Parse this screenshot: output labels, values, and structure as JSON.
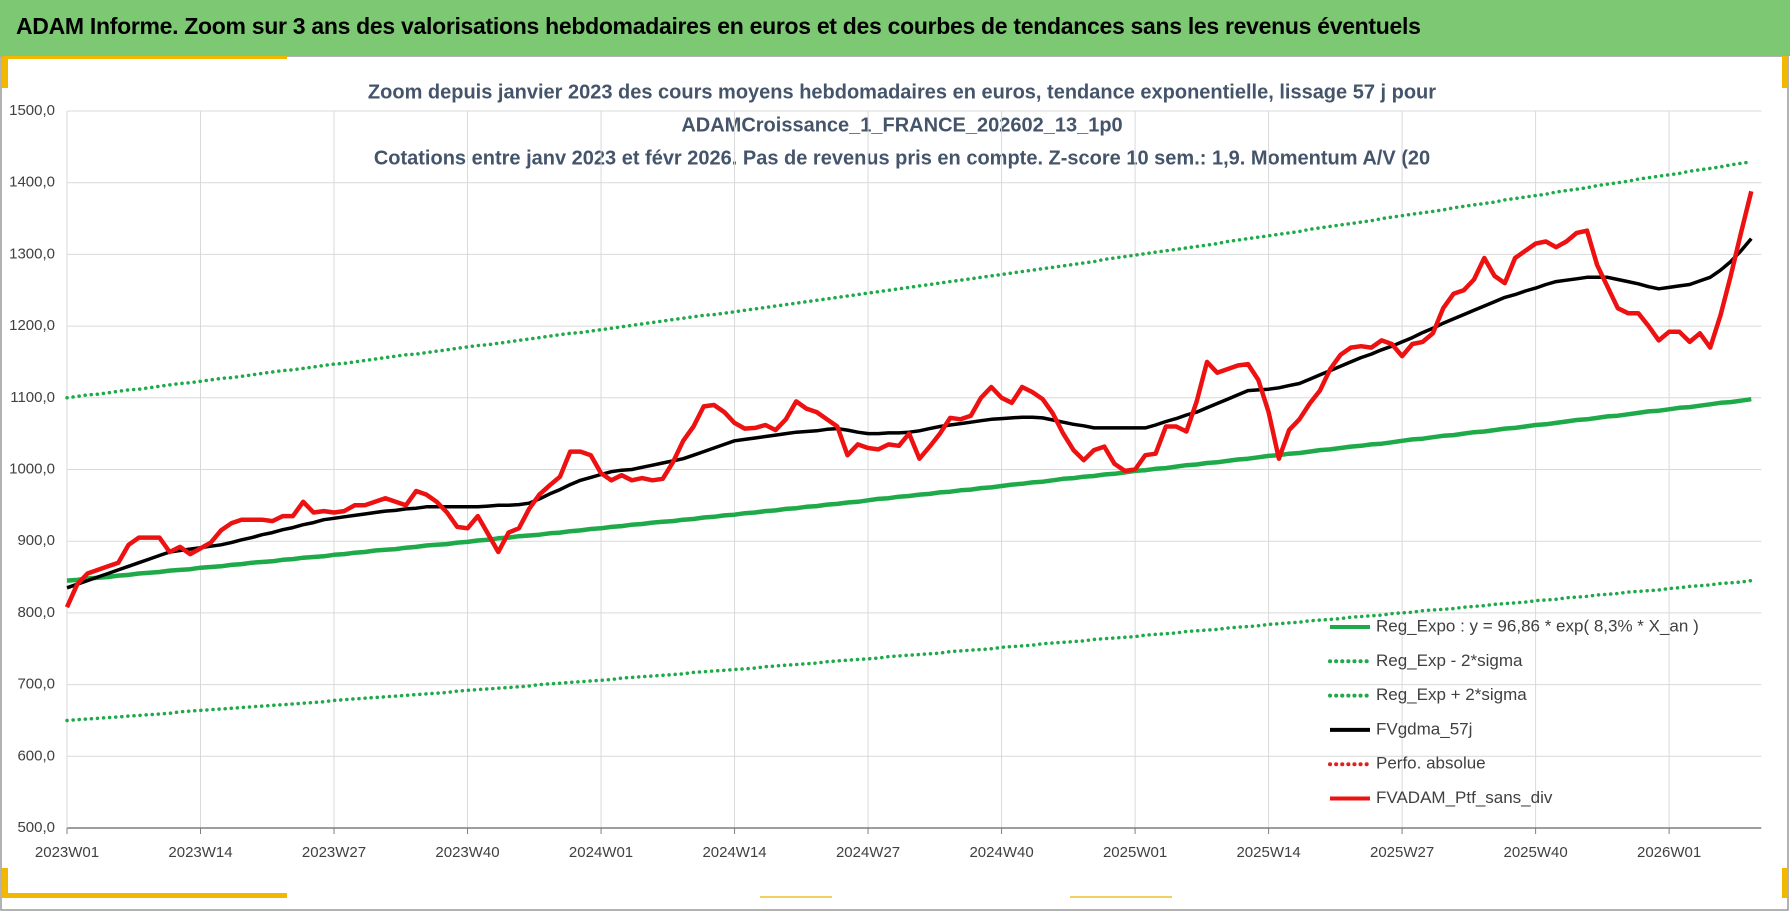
{
  "header": {
    "title": "ADAM Informe. Zoom sur 3 ans des valorisations hebdomadaires en euros et des courbes de tendances sans les revenus éventuels"
  },
  "chart_data": {
    "type": "line",
    "title": [
      "Zoom depuis janvier 2023 des cours moyens hebdomadaires  en euros, tendance exponentielle, lissage 57 j pour",
      "ADAMCroissance_1_FRANCE_202602_13_1p0",
      "Cotations  entre janv 2023 et févr 2026. Pas de revenus pris en compte. Z-score 10 sem.: 1,9. Momentum A/V (20"
    ],
    "categories": [
      "2023W01",
      null,
      null,
      null,
      null,
      null,
      null,
      null,
      null,
      null,
      null,
      null,
      null,
      "2023W14",
      null,
      null,
      null,
      null,
      null,
      null,
      null,
      null,
      null,
      null,
      null,
      null,
      "2023W27",
      null,
      null,
      null,
      null,
      null,
      null,
      null,
      null,
      null,
      null,
      null,
      null,
      "2023W40",
      null,
      null,
      null,
      null,
      null,
      null,
      null,
      null,
      null,
      null,
      null,
      null,
      "2024W01",
      null,
      null,
      null,
      null,
      null,
      null,
      null,
      null,
      null,
      null,
      null,
      null,
      "2024W14",
      null,
      null,
      null,
      null,
      null,
      null,
      null,
      null,
      null,
      null,
      null,
      null,
      "2024W27",
      null,
      null,
      null,
      null,
      null,
      null,
      null,
      null,
      null,
      null,
      null,
      null,
      "2024W40",
      null,
      null,
      null,
      null,
      null,
      null,
      null,
      null,
      null,
      null,
      null,
      null,
      "2025W01",
      null,
      null,
      null,
      null,
      null,
      null,
      null,
      null,
      null,
      null,
      null,
      null,
      "2025W14",
      null,
      null,
      null,
      null,
      null,
      null,
      null,
      null,
      null,
      null,
      null,
      null,
      "2025W27",
      null,
      null,
      null,
      null,
      null,
      null,
      null,
      null,
      null,
      null,
      null,
      null,
      "2025W40",
      null,
      null,
      null,
      null,
      null,
      null,
      null,
      null,
      null,
      null,
      null,
      null,
      "2026W01",
      null,
      null,
      null,
      null,
      null,
      null,
      null,
      null
    ],
    "ylim": [
      500,
      1500
    ],
    "yticks": [
      {
        "value": 500,
        "label": "500,0"
      },
      {
        "value": 600,
        "label": "600,0"
      },
      {
        "value": 700,
        "label": "700,0"
      },
      {
        "value": 800,
        "label": "800,0"
      },
      {
        "value": 900,
        "label": "900,0"
      },
      {
        "value": 1000,
        "label": "1000,0"
      },
      {
        "value": 1100,
        "label": "1100,0"
      },
      {
        "value": 1200,
        "label": "1200,0"
      },
      {
        "value": 1300,
        "label": "1300,0"
      },
      {
        "value": 1400,
        "label": "1400,0"
      },
      {
        "value": 1500,
        "label": "1500,0"
      }
    ],
    "grid": true,
    "legend": "lower right",
    "series": [
      {
        "name": "Reg_Expo : y = 96,86 * exp( 8,3% *  X_an )",
        "color": "#1faa4a",
        "style": "solid",
        "values": [
          845,
          846,
          848,
          849,
          850,
          852,
          853,
          855,
          856,
          857,
          859,
          860,
          861,
          863,
          864,
          865,
          867,
          868,
          870,
          871,
          872,
          874,
          875,
          877,
          878,
          879,
          881,
          882,
          884,
          885,
          887,
          888,
          889,
          891,
          892,
          894,
          895,
          896,
          898,
          899,
          901,
          902,
          904,
          905,
          907,
          908,
          909,
          911,
          912,
          914,
          915,
          917,
          918,
          920,
          921,
          923,
          924,
          926,
          927,
          928,
          930,
          931,
          933,
          934,
          936,
          937,
          939,
          940,
          942,
          943,
          945,
          946,
          948,
          949,
          951,
          952,
          954,
          955,
          957,
          959,
          960,
          962,
          963,
          965,
          966,
          968,
          969,
          971,
          972,
          974,
          975,
          977,
          979,
          980,
          982,
          983,
          985,
          987,
          988,
          990,
          991,
          993,
          994,
          996,
          998,
          999,
          1001,
          1002,
          1004,
          1006,
          1007,
          1009,
          1010,
          1012,
          1014,
          1015,
          1017,
          1019,
          1020,
          1022,
          1023,
          1025,
          1027,
          1028,
          1030,
          1032,
          1033,
          1035,
          1036,
          1038,
          1040,
          1042,
          1043,
          1045,
          1047,
          1048,
          1050,
          1052,
          1053,
          1055,
          1057,
          1058,
          1060,
          1062,
          1063,
          1065,
          1067,
          1069,
          1070,
          1072,
          1074,
          1075,
          1077,
          1079,
          1081,
          1082,
          1084,
          1086,
          1087,
          1089,
          1091,
          1093,
          1094,
          1096,
          1098
        ]
      },
      {
        "name": "Reg_Exp - 2*sigma",
        "color": "#1faa4a",
        "style": "dotted",
        "values": [
          650,
          651,
          652,
          653,
          654,
          655,
          656,
          657,
          658,
          659,
          660,
          662,
          663,
          664,
          665,
          666,
          667,
          668,
          669,
          670,
          671,
          672,
          673,
          674,
          675,
          676,
          678,
          679,
          680,
          681,
          682,
          683,
          684,
          685,
          686,
          687,
          688,
          689,
          691,
          692,
          693,
          694,
          695,
          696,
          697,
          698,
          700,
          701,
          702,
          703,
          704,
          705,
          706,
          707,
          709,
          710,
          711,
          712,
          713,
          714,
          715,
          717,
          718,
          719,
          720,
          721,
          722,
          723,
          725,
          726,
          727,
          728,
          729,
          730,
          732,
          733,
          734,
          735,
          736,
          737,
          739,
          740,
          741,
          742,
          743,
          744,
          746,
          747,
          748,
          749,
          750,
          752,
          753,
          754,
          755,
          757,
          758,
          759,
          760,
          761,
          763,
          764,
          765,
          766,
          767,
          769,
          770,
          771,
          772,
          774,
          775,
          776,
          777,
          779,
          780,
          781,
          782,
          784,
          785,
          786,
          787,
          789,
          790,
          791,
          792,
          794,
          795,
          796,
          797,
          799,
          800,
          801,
          803,
          804,
          805,
          806,
          808,
          809,
          810,
          812,
          813,
          814,
          815,
          817,
          818,
          819,
          821,
          822,
          823,
          825,
          826,
          827,
          829,
          830,
          831,
          832,
          834,
          835,
          837,
          838,
          839,
          841,
          842,
          843,
          845
        ]
      },
      {
        "name": "Reg_Exp + 2*sigma",
        "color": "#1faa4a",
        "style": "dotted",
        "values": [
          1100,
          1102,
          1104,
          1105,
          1107,
          1109,
          1111,
          1112,
          1114,
          1116,
          1118,
          1120,
          1121,
          1123,
          1125,
          1127,
          1128,
          1130,
          1132,
          1134,
          1136,
          1138,
          1139,
          1141,
          1143,
          1145,
          1147,
          1148,
          1150,
          1152,
          1154,
          1156,
          1158,
          1160,
          1161,
          1163,
          1165,
          1167,
          1169,
          1171,
          1173,
          1174,
          1176,
          1178,
          1180,
          1182,
          1184,
          1186,
          1188,
          1190,
          1191,
          1193,
          1195,
          1197,
          1199,
          1201,
          1203,
          1205,
          1207,
          1209,
          1211,
          1213,
          1215,
          1216,
          1218,
          1220,
          1222,
          1224,
          1226,
          1228,
          1230,
          1232,
          1234,
          1236,
          1238,
          1240,
          1242,
          1244,
          1246,
          1248,
          1250,
          1252,
          1254,
          1256,
          1258,
          1260,
          1262,
          1264,
          1266,
          1268,
          1270,
          1272,
          1274,
          1276,
          1278,
          1280,
          1282,
          1284,
          1286,
          1288,
          1290,
          1293,
          1295,
          1297,
          1299,
          1301,
          1303,
          1305,
          1307,
          1309,
          1311,
          1313,
          1315,
          1318,
          1320,
          1322,
          1324,
          1326,
          1328,
          1330,
          1332,
          1335,
          1337,
          1339,
          1341,
          1343,
          1345,
          1347,
          1350,
          1352,
          1354,
          1356,
          1358,
          1360,
          1362,
          1365,
          1367,
          1369,
          1371,
          1373,
          1376,
          1378,
          1380,
          1382,
          1384,
          1387,
          1389,
          1391,
          1393,
          1396,
          1398,
          1400,
          1402,
          1405,
          1407,
          1409,
          1411,
          1413,
          1416,
          1418,
          1420,
          1422,
          1425,
          1427,
          1429
        ]
      },
      {
        "name": "FVgdma_57j",
        "color": "#000000",
        "style": "solid",
        "values": [
          835,
          840,
          845,
          850,
          855,
          860,
          865,
          870,
          875,
          880,
          885,
          887,
          889,
          891,
          893,
          895,
          898,
          902,
          905,
          909,
          912,
          916,
          919,
          923,
          926,
          930,
          932,
          934,
          936,
          938,
          940,
          942,
          943,
          945,
          946,
          948,
          948,
          948,
          948,
          948,
          948,
          949,
          950,
          950,
          951,
          953,
          959,
          966,
          972,
          979,
          985,
          989,
          993,
          997,
          999,
          1000,
          1003,
          1006,
          1009,
          1012,
          1015,
          1020,
          1025,
          1030,
          1035,
          1040,
          1042,
          1044,
          1046,
          1048,
          1050,
          1052,
          1053,
          1054,
          1056,
          1057,
          1055,
          1052,
          1050,
          1050,
          1051,
          1051,
          1052,
          1054,
          1057,
          1060,
          1062,
          1064,
          1066,
          1068,
          1070,
          1071,
          1072,
          1073,
          1073,
          1072,
          1069,
          1066,
          1063,
          1061,
          1058,
          1058,
          1058,
          1058,
          1058,
          1058,
          1062,
          1067,
          1071,
          1076,
          1080,
          1086,
          1092,
          1098,
          1104,
          1110,
          1111,
          1112,
          1114,
          1117,
          1120,
          1126,
          1132,
          1138,
          1144,
          1150,
          1156,
          1161,
          1167,
          1172,
          1178,
          1184,
          1191,
          1197,
          1204,
          1210,
          1216,
          1222,
          1228,
          1234,
          1240,
          1244,
          1249,
          1253,
          1258,
          1262,
          1264,
          1266,
          1268,
          1268,
          1268,
          1265,
          1262,
          1259,
          1255,
          1252,
          1254,
          1256,
          1258,
          1263,
          1268,
          1278,
          1290,
          1305,
          1322
        ]
      },
      {
        "name": "Perfo. absolue",
        "color": "#e0201b",
        "style": "dotted"
      },
      {
        "name": "FVADAM_Ptf_sans_div",
        "color": "#ee1111",
        "style": "solid",
        "values": [
          808,
          840,
          855,
          860,
          865,
          870,
          895,
          905,
          905,
          905,
          885,
          892,
          882,
          890,
          898,
          915,
          925,
          930,
          930,
          930,
          928,
          935,
          935,
          955,
          940,
          942,
          940,
          942,
          950,
          950,
          955,
          960,
          955,
          950,
          970,
          965,
          955,
          940,
          920,
          918,
          935,
          910,
          885,
          912,
          918,
          945,
          965,
          978,
          990,
          1025,
          1025,
          1020,
          995,
          985,
          992,
          985,
          988,
          985,
          987,
          1010,
          1040,
          1060,
          1088,
          1090,
          1080,
          1065,
          1057,
          1058,
          1062,
          1055,
          1070,
          1095,
          1085,
          1080,
          1070,
          1060,
          1020,
          1035,
          1030,
          1028,
          1035,
          1033,
          1050,
          1015,
          1032,
          1050,
          1072,
          1070,
          1075,
          1100,
          1115,
          1100,
          1093,
          1115,
          1108,
          1098,
          1078,
          1050,
          1027,
          1013,
          1027,
          1032,
          1008,
          998,
          1000,
          1020,
          1022,
          1060,
          1060,
          1053,
          1095,
          1150,
          1135,
          1140,
          1145,
          1147,
          1125,
          1080,
          1015,
          1055,
          1070,
          1092,
          1110,
          1140,
          1160,
          1170,
          1172,
          1170,
          1180,
          1175,
          1158,
          1175,
          1178,
          1190,
          1225,
          1245,
          1250,
          1265,
          1295,
          1270,
          1260,
          1295,
          1305,
          1315,
          1318,
          1310,
          1318,
          1330,
          1333,
          1285,
          1255,
          1225,
          1218,
          1218,
          1200,
          1180,
          1192,
          1192,
          1178,
          1190,
          1170,
          1215,
          1270,
          1330,
          1388
        ]
      }
    ]
  }
}
